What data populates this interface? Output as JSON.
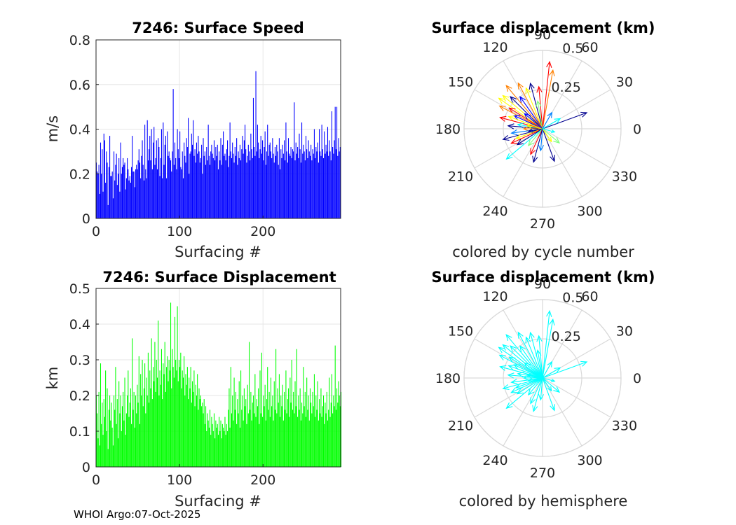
{
  "footer": {
    "text": "WHOI Argo:07-Oct-2025"
  },
  "chart_data": [
    {
      "type": "bar",
      "title": "7246: Surface Speed",
      "xlabel": "Surfacing #",
      "ylabel": "m/s",
      "xlim": [
        0,
        293
      ],
      "ylim": [
        0,
        0.8
      ],
      "xticks": [
        0,
        100,
        200
      ],
      "xtick_labels": [
        "0",
        "100",
        "200"
      ],
      "yticks": [
        0,
        0.2,
        0.4,
        0.6,
        0.8
      ],
      "ytick_labels": [
        "0",
        "0.2",
        "0.4",
        "0.6",
        "0.8"
      ],
      "color": "#0000ff",
      "grid": true,
      "n": 293,
      "values": [
        0.25,
        0.21,
        0.2,
        0.24,
        0.11,
        0.34,
        0.2,
        0.31,
        0.12,
        0.38,
        0.35,
        0.16,
        0.3,
        0.25,
        0.06,
        0.23,
        0.37,
        0.19,
        0.19,
        0.21,
        0.09,
        0.3,
        0.17,
        0.24,
        0.29,
        0.15,
        0.2,
        0.27,
        0.12,
        0.34,
        0.2,
        0.23,
        0.27,
        0.24,
        0.25,
        0.13,
        0.18,
        0.27,
        0.22,
        0.17,
        0.19,
        0.16,
        0.23,
        0.37,
        0.21,
        0.21,
        0.14,
        0.22,
        0.24,
        0.22,
        0.26,
        0.31,
        0.25,
        0.18,
        0.28,
        0.35,
        0.24,
        0.17,
        0.42,
        0.22,
        0.18,
        0.44,
        0.26,
        0.31,
        0.37,
        0.26,
        0.4,
        0.22,
        0.34,
        0.41,
        0.24,
        0.27,
        0.35,
        0.22,
        0.36,
        0.32,
        0.19,
        0.27,
        0.4,
        0.18,
        0.43,
        0.24,
        0.33,
        0.37,
        0.18,
        0.39,
        0.28,
        0.3,
        0.27,
        0.26,
        0.21,
        0.3,
        0.58,
        0.24,
        0.34,
        0.27,
        0.22,
        0.4,
        0.31,
        0.27,
        0.39,
        0.23,
        0.22,
        0.3,
        0.18,
        0.34,
        0.28,
        0.25,
        0.36,
        0.32,
        0.45,
        0.2,
        0.29,
        0.3,
        0.38,
        0.33,
        0.44,
        0.28,
        0.31,
        0.25,
        0.34,
        0.29,
        0.37,
        0.3,
        0.25,
        0.27,
        0.33,
        0.2,
        0.36,
        0.28,
        0.3,
        0.24,
        0.32,
        0.26,
        0.42,
        0.28,
        0.24,
        0.3,
        0.33,
        0.29,
        0.27,
        0.35,
        0.26,
        0.32,
        0.28,
        0.33,
        0.22,
        0.3,
        0.26,
        0.36,
        0.24,
        0.33,
        0.39,
        0.28,
        0.29,
        0.26,
        0.31,
        0.35,
        0.23,
        0.28,
        0.43,
        0.3,
        0.27,
        0.34,
        0.29,
        0.25,
        0.32,
        0.28,
        0.36,
        0.24,
        0.3,
        0.27,
        0.33,
        0.26,
        0.31,
        0.37,
        0.29,
        0.35,
        0.42,
        0.31,
        0.25,
        0.28,
        0.33,
        0.3,
        0.26,
        0.38,
        0.31,
        0.27,
        0.54,
        0.32,
        0.28,
        0.66,
        0.3,
        0.42,
        0.34,
        0.27,
        0.31,
        0.37,
        0.29,
        0.35,
        0.26,
        0.32,
        0.39,
        0.24,
        0.3,
        0.42,
        0.28,
        0.33,
        0.34,
        0.3,
        0.27,
        0.36,
        0.29,
        0.25,
        0.32,
        0.28,
        0.33,
        0.3,
        0.24,
        0.36,
        0.22,
        0.31,
        0.27,
        0.33,
        0.29,
        0.35,
        0.26,
        0.43,
        0.3,
        0.25,
        0.36,
        0.29,
        0.28,
        0.32,
        0.27,
        0.31,
        0.3,
        0.52,
        0.26,
        0.34,
        0.29,
        0.32,
        0.27,
        0.38,
        0.31,
        0.25,
        0.43,
        0.29,
        0.33,
        0.3,
        0.26,
        0.37,
        0.31,
        0.27,
        0.35,
        0.3,
        0.28,
        0.33,
        0.26,
        0.31,
        0.29,
        0.4,
        0.27,
        0.32,
        0.3,
        0.34,
        0.25,
        0.4,
        0.3,
        0.28,
        0.42,
        0.31,
        0.27,
        0.39,
        0.29,
        0.33,
        0.3,
        0.41,
        0.28,
        0.35,
        0.3,
        0.26,
        0.48,
        0.32,
        0.29,
        0.35,
        0.5,
        0.31,
        0.5,
        0.28,
        0.36,
        0.3,
        0.32
      ],
      "note": "per-surfacing values are approximate readings of a dense bar plot"
    },
    {
      "type": "compass",
      "title": "Surface displacement (km)",
      "caption": "colored by cycle number",
      "rlim": [
        0,
        0.5
      ],
      "rticks": [
        0.25,
        0.5
      ],
      "rtick_labels": [
        "0.25",
        "0.5"
      ],
      "angle_ticks": [
        0,
        30,
        60,
        90,
        120,
        150,
        180,
        210,
        240,
        270,
        300,
        330
      ],
      "angle_labels": [
        "0",
        "30",
        "60",
        "90",
        "120",
        "150",
        "180",
        "210",
        "240",
        "270",
        "300",
        "330"
      ],
      "color_scale": [
        "#00008f",
        "#0000ff",
        "#0080ff",
        "#00ffff",
        "#80ff80",
        "#ffff00",
        "#ff8000",
        "#ff0000",
        "#800000"
      ],
      "vectors": [
        {
          "angle": 20,
          "r": 0.3,
          "color": "#00008f"
        },
        {
          "angle": 80,
          "r": 0.38,
          "color": "#ff8000"
        },
        {
          "angle": 84,
          "r": 0.43,
          "color": "#ff0000"
        },
        {
          "angle": 95,
          "r": 0.27,
          "color": "#ff0000"
        },
        {
          "angle": 105,
          "r": 0.3,
          "color": "#00008f"
        },
        {
          "angle": 112,
          "r": 0.28,
          "color": "#ffff00"
        },
        {
          "angle": 118,
          "r": 0.33,
          "color": "#ff8000"
        },
        {
          "angle": 125,
          "r": 0.25,
          "color": "#0000ff"
        },
        {
          "angle": 130,
          "r": 0.36,
          "color": "#ff8000"
        },
        {
          "angle": 135,
          "r": 0.29,
          "color": "#00008f"
        },
        {
          "angle": 140,
          "r": 0.33,
          "color": "#ffff00"
        },
        {
          "angle": 145,
          "r": 0.34,
          "color": "#ffff00"
        },
        {
          "angle": 148,
          "r": 0.25,
          "color": "#ff0000"
        },
        {
          "angle": 152,
          "r": 0.31,
          "color": "#ff8000"
        },
        {
          "angle": 155,
          "r": 0.2,
          "color": "#0000ff"
        },
        {
          "angle": 160,
          "r": 0.23,
          "color": "#ffff00"
        },
        {
          "angle": 165,
          "r": 0.28,
          "color": "#ff0000"
        },
        {
          "angle": 170,
          "r": 0.16,
          "color": "#00ffff"
        },
        {
          "angle": 175,
          "r": 0.22,
          "color": "#00008f"
        },
        {
          "angle": 180,
          "r": 0.12,
          "color": "#ff8000"
        },
        {
          "angle": 188,
          "r": 0.2,
          "color": "#0080ff"
        },
        {
          "angle": 195,
          "r": 0.26,
          "color": "#00008f"
        },
        {
          "angle": 200,
          "r": 0.18,
          "color": "#ffff00"
        },
        {
          "angle": 205,
          "r": 0.22,
          "color": "#ff0000"
        },
        {
          "angle": 212,
          "r": 0.19,
          "color": "#00008f"
        },
        {
          "angle": 220,
          "r": 0.3,
          "color": "#00ffff"
        },
        {
          "angle": 230,
          "r": 0.14,
          "color": "#80ff80"
        },
        {
          "angle": 245,
          "r": 0.18,
          "color": "#ff0000"
        },
        {
          "angle": 255,
          "r": 0.22,
          "color": "#00008f"
        },
        {
          "angle": 265,
          "r": 0.14,
          "color": "#0080ff"
        },
        {
          "angle": 290,
          "r": 0.22,
          "color": "#00008f"
        },
        {
          "angle": 305,
          "r": 0.1,
          "color": "#ffff00"
        },
        {
          "angle": 320,
          "r": 0.14,
          "color": "#80ff80"
        },
        {
          "angle": 345,
          "r": 0.08,
          "color": "#00ffff"
        },
        {
          "angle": 60,
          "r": 0.12,
          "color": "#0080ff"
        },
        {
          "angle": 100,
          "r": 0.18,
          "color": "#80ff80"
        },
        {
          "angle": 140,
          "r": 0.15,
          "color": "#0000ff"
        },
        {
          "angle": 168,
          "r": 0.1,
          "color": "#ffff00"
        },
        {
          "angle": 190,
          "r": 0.09,
          "color": "#00008f"
        },
        {
          "angle": 30,
          "r": 0.13,
          "color": "#00ffff"
        }
      ]
    },
    {
      "type": "bar",
      "title": "7246: Surface Displacement",
      "xlabel": "Surfacing #",
      "ylabel": "km",
      "xlim": [
        0,
        293
      ],
      "ylim": [
        0,
        0.5
      ],
      "xticks": [
        0,
        100,
        200
      ],
      "xtick_labels": [
        "0",
        "100",
        "200"
      ],
      "yticks": [
        0,
        0.1,
        0.2,
        0.3,
        0.4,
        0.5
      ],
      "ytick_labels": [
        "0",
        "0.1",
        "0.2",
        "0.3",
        "0.4",
        "0.5"
      ],
      "color": "#00ff00",
      "grid": true,
      "n": 293,
      "values": [
        0.2,
        0.15,
        0.08,
        0.21,
        0.06,
        0.29,
        0.12,
        0.18,
        0.09,
        0.19,
        0.14,
        0.27,
        0.1,
        0.22,
        0.05,
        0.16,
        0.2,
        0.13,
        0.18,
        0.11,
        0.06,
        0.2,
        0.16,
        0.28,
        0.12,
        0.19,
        0.08,
        0.24,
        0.15,
        0.2,
        0.1,
        0.17,
        0.21,
        0.13,
        0.25,
        0.09,
        0.15,
        0.2,
        0.27,
        0.14,
        0.18,
        0.22,
        0.12,
        0.36,
        0.16,
        0.21,
        0.11,
        0.2,
        0.15,
        0.23,
        0.18,
        0.31,
        0.12,
        0.26,
        0.2,
        0.3,
        0.17,
        0.22,
        0.29,
        0.15,
        0.25,
        0.2,
        0.32,
        0.18,
        0.27,
        0.22,
        0.36,
        0.19,
        0.28,
        0.24,
        0.35,
        0.21,
        0.3,
        0.25,
        0.41,
        0.2,
        0.27,
        0.23,
        0.33,
        0.19,
        0.29,
        0.26,
        0.35,
        0.21,
        0.28,
        0.31,
        0.24,
        0.3,
        0.27,
        0.46,
        0.22,
        0.33,
        0.28,
        0.25,
        0.42,
        0.3,
        0.27,
        0.45,
        0.24,
        0.3,
        0.28,
        0.32,
        0.22,
        0.27,
        0.25,
        0.31,
        0.2,
        0.26,
        0.23,
        0.28,
        0.19,
        0.25,
        0.22,
        0.28,
        0.18,
        0.24,
        0.21,
        0.27,
        0.17,
        0.23,
        0.2,
        0.26,
        0.16,
        0.22,
        0.19,
        0.2,
        0.17,
        0.18,
        0.15,
        0.19,
        0.12,
        0.17,
        0.1,
        0.15,
        0.13,
        0.11,
        0.16,
        0.09,
        0.14,
        0.12,
        0.1,
        0.15,
        0.08,
        0.13,
        0.11,
        0.12,
        0.09,
        0.14,
        0.1,
        0.13,
        0.08,
        0.12,
        0.11,
        0.1,
        0.14,
        0.09,
        0.12,
        0.1,
        0.16,
        0.22,
        0.11,
        0.28,
        0.15,
        0.2,
        0.13,
        0.25,
        0.16,
        0.21,
        0.12,
        0.19,
        0.15,
        0.24,
        0.11,
        0.27,
        0.16,
        0.2,
        0.13,
        0.22,
        0.17,
        0.19,
        0.12,
        0.23,
        0.15,
        0.35,
        0.16,
        0.21,
        0.13,
        0.18,
        0.2,
        0.15,
        0.26,
        0.14,
        0.19,
        0.17,
        0.22,
        0.12,
        0.27,
        0.15,
        0.32,
        0.14,
        0.2,
        0.17,
        0.23,
        0.13,
        0.19,
        0.28,
        0.16,
        0.21,
        0.14,
        0.25,
        0.17,
        0.2,
        0.13,
        0.24,
        0.16,
        0.33,
        0.15,
        0.22,
        0.18,
        0.26,
        0.14,
        0.2,
        0.17,
        0.23,
        0.13,
        0.21,
        0.16,
        0.27,
        0.15,
        0.19,
        0.22,
        0.14,
        0.25,
        0.18,
        0.3,
        0.16,
        0.21,
        0.15,
        0.24,
        0.17,
        0.33,
        0.14,
        0.2,
        0.16,
        0.22,
        0.13,
        0.18,
        0.15,
        0.28,
        0.17,
        0.21,
        0.14,
        0.25,
        0.16,
        0.2,
        0.13,
        0.22,
        0.18,
        0.15,
        0.21,
        0.17,
        0.26,
        0.14,
        0.2,
        0.16,
        0.24,
        0.13,
        0.19,
        0.15,
        0.22,
        0.14,
        0.17,
        0.2,
        0.12,
        0.18,
        0.15,
        0.21,
        0.13,
        0.16,
        0.25,
        0.14,
        0.18,
        0.26,
        0.15,
        0.2,
        0.17,
        0.34,
        0.16,
        0.22,
        0.18,
        0.24,
        0.2,
        0.17,
        0.21
      ],
      "note": "per-surfacing values are approximate readings of a dense bar plot"
    },
    {
      "type": "compass",
      "title": "Surface displacement (km)",
      "caption": "colored by hemisphere",
      "rlim": [
        0,
        0.5
      ],
      "rticks": [
        0.25,
        0.5
      ],
      "rtick_labels": [
        "0.25",
        "0.5"
      ],
      "angle_ticks": [
        0,
        30,
        60,
        90,
        120,
        150,
        180,
        210,
        240,
        270,
        300,
        330
      ],
      "angle_labels": [
        "0",
        "30",
        "60",
        "90",
        "120",
        "150",
        "180",
        "210",
        "240",
        "270",
        "300",
        "330"
      ],
      "color": "#00ffff",
      "vectors": [
        {
          "angle": 20,
          "r": 0.3
        },
        {
          "angle": 80,
          "r": 0.38
        },
        {
          "angle": 84,
          "r": 0.43
        },
        {
          "angle": 95,
          "r": 0.27
        },
        {
          "angle": 105,
          "r": 0.3
        },
        {
          "angle": 112,
          "r": 0.28
        },
        {
          "angle": 118,
          "r": 0.33
        },
        {
          "angle": 125,
          "r": 0.25
        },
        {
          "angle": 130,
          "r": 0.36
        },
        {
          "angle": 135,
          "r": 0.29
        },
        {
          "angle": 140,
          "r": 0.33
        },
        {
          "angle": 145,
          "r": 0.34
        },
        {
          "angle": 148,
          "r": 0.25
        },
        {
          "angle": 152,
          "r": 0.31
        },
        {
          "angle": 155,
          "r": 0.2
        },
        {
          "angle": 160,
          "r": 0.23
        },
        {
          "angle": 165,
          "r": 0.28
        },
        {
          "angle": 170,
          "r": 0.16
        },
        {
          "angle": 175,
          "r": 0.22
        },
        {
          "angle": 180,
          "r": 0.12
        },
        {
          "angle": 188,
          "r": 0.2
        },
        {
          "angle": 195,
          "r": 0.26
        },
        {
          "angle": 200,
          "r": 0.18
        },
        {
          "angle": 205,
          "r": 0.22
        },
        {
          "angle": 212,
          "r": 0.19
        },
        {
          "angle": 220,
          "r": 0.3
        },
        {
          "angle": 230,
          "r": 0.14
        },
        {
          "angle": 245,
          "r": 0.18
        },
        {
          "angle": 255,
          "r": 0.22
        },
        {
          "angle": 265,
          "r": 0.14
        },
        {
          "angle": 290,
          "r": 0.22
        },
        {
          "angle": 305,
          "r": 0.1
        },
        {
          "angle": 320,
          "r": 0.14
        },
        {
          "angle": 345,
          "r": 0.08
        },
        {
          "angle": 60,
          "r": 0.12
        },
        {
          "angle": 100,
          "r": 0.18
        },
        {
          "angle": 140,
          "r": 0.15
        },
        {
          "angle": 168,
          "r": 0.1
        },
        {
          "angle": 190,
          "r": 0.09
        },
        {
          "angle": 30,
          "r": 0.13
        }
      ]
    }
  ]
}
